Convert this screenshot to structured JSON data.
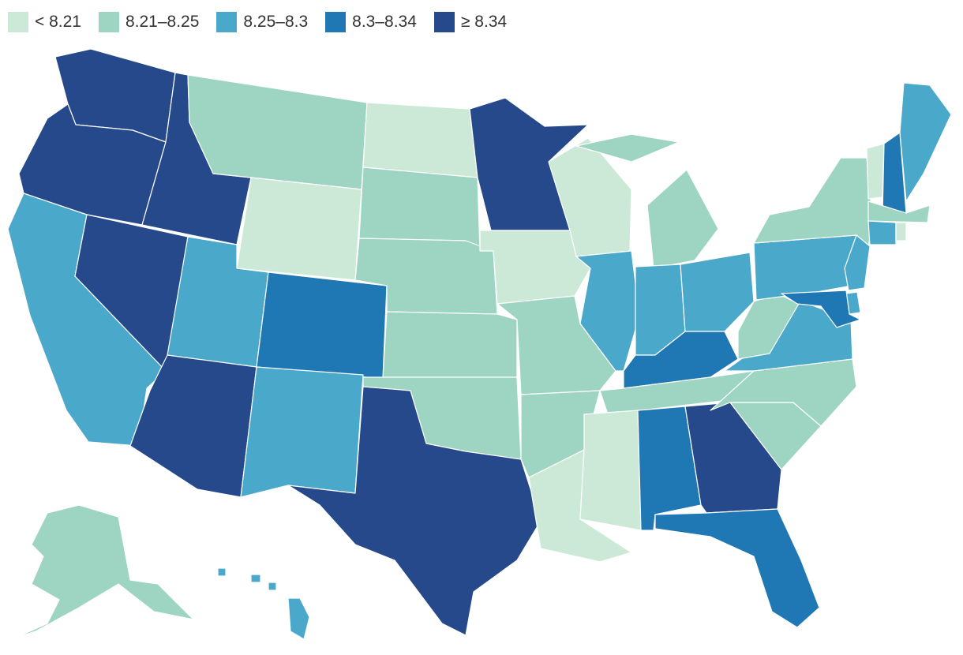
{
  "legend": {
    "items": [
      {
        "label": "< 8.21",
        "color": "#cce9d7"
      },
      {
        "label": "8.21–8.25",
        "color": "#9dd4c2"
      },
      {
        "label": "8.25–8.3",
        "color": "#4aa8cb"
      },
      {
        "label": "8.3–8.34",
        "color": "#1f78b4"
      },
      {
        "label": "≥ 8.34",
        "color": "#25498b"
      }
    ]
  },
  "states": {
    "WA": 4,
    "OR": 4,
    "CA": 2,
    "NV": 4,
    "ID": 4,
    "MT": 1,
    "WY": 0,
    "UT": 2,
    "AZ": 4,
    "CO": 3,
    "NM": 2,
    "ND": 0,
    "SD": 1,
    "NE": 1,
    "KS": 1,
    "OK": 1,
    "TX": 4,
    "MN": 4,
    "IA": 0,
    "MO": 1,
    "AR": 1,
    "LA": 0,
    "WI": 0,
    "IL": 2,
    "MI": 1,
    "IN": 2,
    "OH": 2,
    "KY": 3,
    "TN": 1,
    "MS": 0,
    "AL": 3,
    "GA": 4,
    "FL": 3,
    "SC": 1,
    "NC": 1,
    "VA": 2,
    "WV": 1,
    "PA": 2,
    "NY": 1,
    "VT": 0,
    "NH": 3,
    "ME": 2,
    "MA": 1,
    "CT": 2,
    "RI": 0,
    "NJ": 2,
    "DE": 2,
    "MD": 3,
    "AK": 1,
    "HI": 2
  }
}
